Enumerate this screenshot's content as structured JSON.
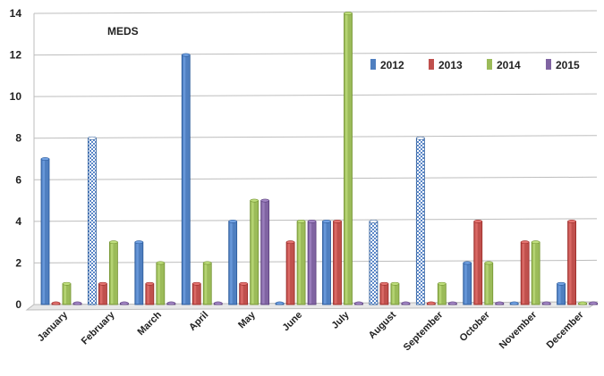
{
  "chart_data": {
    "type": "bar",
    "title": "MEDS",
    "categories": [
      "January",
      "February",
      "March",
      "April",
      "May",
      "June",
      "July",
      "August",
      "September",
      "October",
      "November",
      "December"
    ],
    "series": [
      {
        "name": "2012",
        "color": "#4f7fc0",
        "values": [
          7,
          8,
          3,
          12,
          4,
          0,
          4,
          4,
          8,
          2,
          0,
          1
        ]
      },
      {
        "name": "2013",
        "color": "#c0504d",
        "values": [
          0,
          1,
          1,
          1,
          1,
          3,
          4,
          1,
          0,
          4,
          3,
          4
        ]
      },
      {
        "name": "2014",
        "color": "#9bbb59",
        "values": [
          1,
          3,
          2,
          2,
          5,
          4,
          14,
          1,
          1,
          2,
          3,
          0
        ]
      },
      {
        "name": "2015",
        "color": "#8064a2",
        "values": [
          0,
          0,
          0,
          0,
          5,
          4,
          0,
          0,
          0,
          0,
          0,
          0
        ]
      }
    ],
    "patterned_bars": [
      {
        "series": "2012",
        "category": "February"
      },
      {
        "series": "2012",
        "category": "August"
      },
      {
        "series": "2012",
        "category": "September"
      }
    ],
    "ylim": [
      0,
      14
    ],
    "yticks": [
      0,
      2,
      4,
      6,
      8,
      10,
      12,
      14
    ],
    "grid": true,
    "legend": "top-right"
  }
}
